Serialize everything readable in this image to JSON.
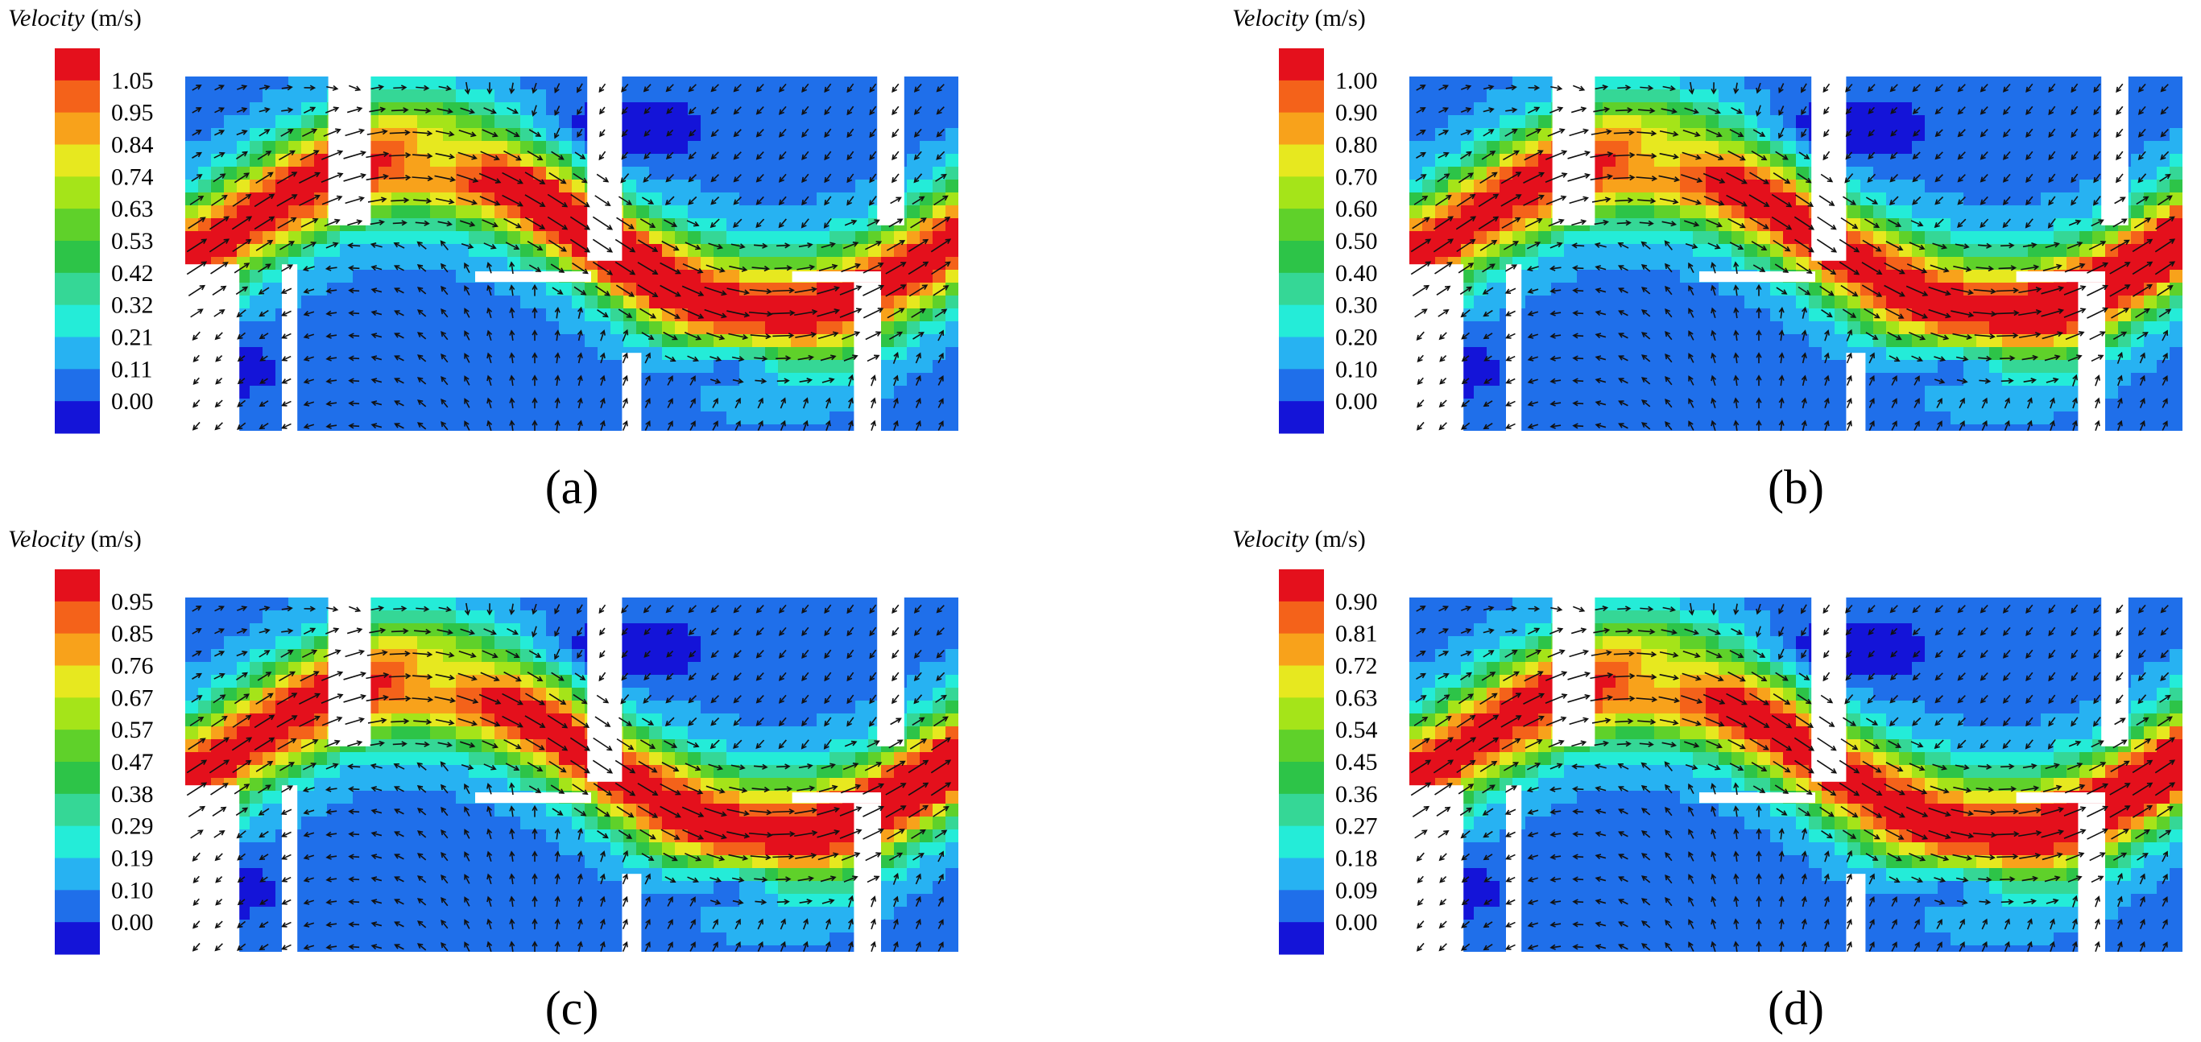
{
  "figure": {
    "panels": [
      {
        "id": "a",
        "label": "(a)",
        "title_name": "Velocity",
        "title_unit": "(m/s)",
        "colorbar_ticks": [
          "1.05",
          "0.95",
          "0.84",
          "0.74",
          "0.63",
          "0.53",
          "0.42",
          "0.32",
          "0.21",
          "0.11",
          "0.00"
        ]
      },
      {
        "id": "b",
        "label": "(b)",
        "title_name": "Velocity",
        "title_unit": "(m/s)",
        "colorbar_ticks": [
          "1.00",
          "0.90",
          "0.80",
          "0.70",
          "0.60",
          "0.50",
          "0.40",
          "0.30",
          "0.20",
          "0.10",
          "0.00"
        ]
      },
      {
        "id": "c",
        "label": "(c)",
        "title_name": "Velocity",
        "title_unit": "(m/s)",
        "colorbar_ticks": [
          "0.95",
          "0.85",
          "0.76",
          "0.67",
          "0.57",
          "0.47",
          "0.38",
          "0.29",
          "0.19",
          "0.10",
          "0.00"
        ]
      },
      {
        "id": "d",
        "label": "(d)",
        "title_name": "Velocity",
        "title_unit": "(m/s)",
        "colorbar_ticks": [
          "0.90",
          "0.81",
          "0.72",
          "0.63",
          "0.54",
          "0.45",
          "0.36",
          "0.27",
          "0.18",
          "0.09",
          "0.00"
        ]
      }
    ]
  },
  "chart_data": [
    {
      "type": "heatmap",
      "title": "Velocity (m/s)",
      "label": "(a)",
      "value_range": [
        0.0,
        1.05
      ],
      "legend_placement": "left",
      "flow_peak_position": "center-right"
    },
    {
      "type": "heatmap",
      "title": "Velocity (m/s)",
      "label": "(b)",
      "value_range": [
        0.0,
        1.0
      ],
      "legend_placement": "left",
      "flow_peak_position": "right"
    },
    {
      "type": "heatmap",
      "title": "Velocity (m/s)",
      "label": "(c)",
      "value_range": [
        0.0,
        0.95
      ],
      "legend_placement": "left",
      "flow_peak_position": "right"
    },
    {
      "type": "heatmap",
      "title": "Velocity (m/s)",
      "label": "(d)",
      "value_range": [
        0.0,
        0.9
      ],
      "legend_placement": "left",
      "flow_peak_position": "right"
    }
  ],
  "colorscale": [
    "#e4101c",
    "#f4621a",
    "#f8a21b",
    "#e7e81f",
    "#a5e419",
    "#5fd12a",
    "#2dc448",
    "#35d796",
    "#24ecd8",
    "#27b2f2",
    "#1f6fea",
    "#1414d8"
  ]
}
